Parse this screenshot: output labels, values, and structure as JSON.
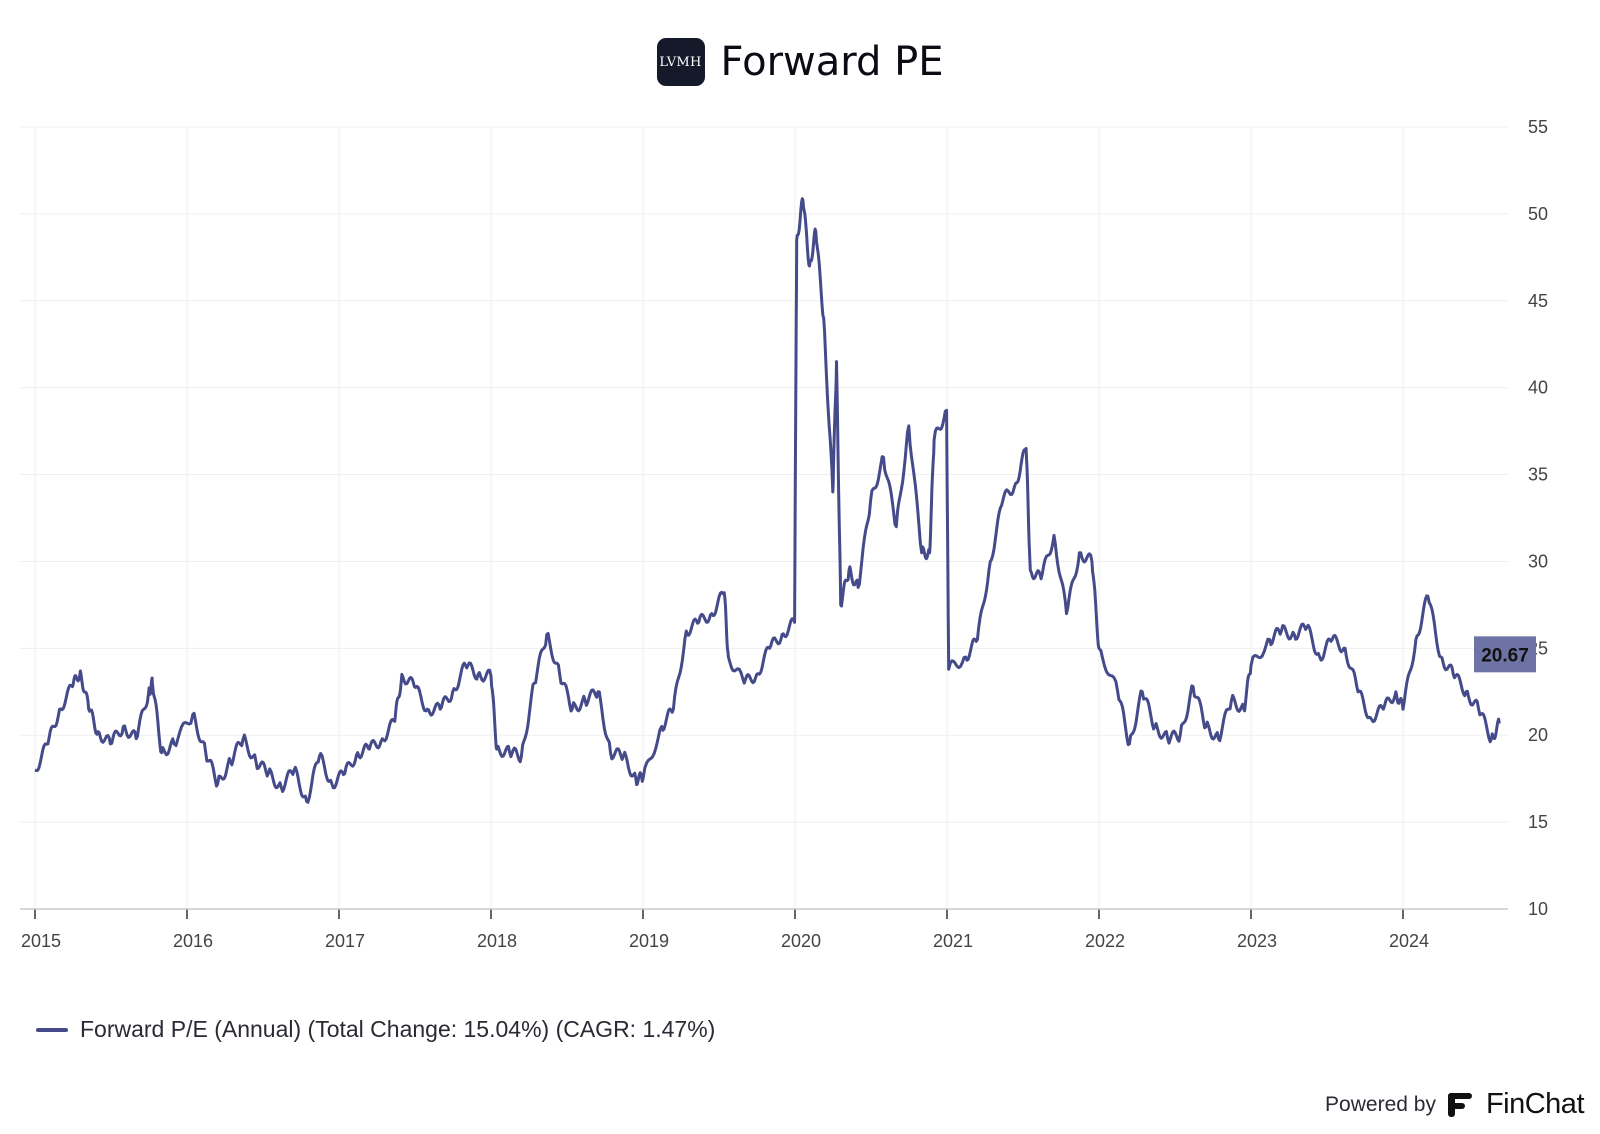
{
  "header": {
    "logo_text": "LVMH",
    "title": "Forward PE"
  },
  "legend": {
    "label": "Forward P/E (Annual) (Total Change: 15.04%) (CAGR: 1.47%)"
  },
  "footer": {
    "powered_label": "Powered by",
    "brand": "FinChat"
  },
  "colors": {
    "series": "#454b8a",
    "badge_bg": "#6e73a6",
    "grid": "#efefef",
    "axis": "#c8c8c8"
  },
  "chart_data": {
    "type": "line",
    "title": "Forward PE",
    "xlabel": "",
    "ylabel": "",
    "ylim": [
      10,
      55
    ],
    "yticks": [
      10,
      15,
      20,
      25,
      30,
      35,
      40,
      45,
      50,
      55
    ],
    "y_axis_side": "right",
    "x_ticks": [
      "2015",
      "2016",
      "2017",
      "2018",
      "2019",
      "2020",
      "2021",
      "2022",
      "2023",
      "2024"
    ],
    "grid": true,
    "legend_position": "bottom-left",
    "last_value_label": "20.67",
    "series": [
      {
        "name": "Forward P/E (Annual) (Total Change: 15.04%) (CAGR: 1.47%)",
        "points": [
          [
            "2015-01-01",
            18.0
          ],
          [
            "2015-02-01",
            19.5
          ],
          [
            "2015-03-01",
            21.5
          ],
          [
            "2015-04-01",
            22.8
          ],
          [
            "2015-04-20",
            23.7
          ],
          [
            "2015-05-10",
            21.5
          ],
          [
            "2015-06-01",
            20.2
          ],
          [
            "2015-07-01",
            19.5
          ],
          [
            "2015-08-01",
            20.5
          ],
          [
            "2015-09-01",
            19.8
          ],
          [
            "2015-10-01",
            22.5
          ],
          [
            "2015-10-10",
            23.0
          ],
          [
            "2015-11-01",
            19.0
          ],
          [
            "2015-12-01",
            19.5
          ],
          [
            "2016-01-15",
            21.2
          ],
          [
            "2016-02-15",
            19.0
          ],
          [
            "2016-03-15",
            17.2
          ],
          [
            "2016-04-15",
            18.5
          ],
          [
            "2016-05-15",
            19.8
          ],
          [
            "2016-06-15",
            18.5
          ],
          [
            "2016-07-15",
            17.8
          ],
          [
            "2016-08-15",
            17.0
          ],
          [
            "2016-09-15",
            18.0
          ],
          [
            "2016-10-15",
            16.2
          ],
          [
            "2016-11-15",
            18.8
          ],
          [
            "2016-12-15",
            17.2
          ],
          [
            "2017-01-15",
            17.8
          ],
          [
            "2017-02-15",
            19.0
          ],
          [
            "2017-03-15",
            19.2
          ],
          [
            "2017-04-15",
            19.8
          ],
          [
            "2017-05-15",
            20.8
          ],
          [
            "2017-06-01",
            23.5
          ],
          [
            "2017-07-01",
            22.8
          ],
          [
            "2017-08-01",
            21.5
          ],
          [
            "2017-09-01",
            21.5
          ],
          [
            "2017-10-01",
            22.5
          ],
          [
            "2017-11-01",
            24.0
          ],
          [
            "2017-12-01",
            23.5
          ],
          [
            "2018-01-01",
            23.4
          ],
          [
            "2018-01-15",
            19.2
          ],
          [
            "2018-02-15",
            19.0
          ],
          [
            "2018-03-15",
            18.8
          ],
          [
            "2018-04-15",
            23.0
          ],
          [
            "2018-05-15",
            25.8
          ],
          [
            "2018-06-15",
            23.5
          ],
          [
            "2018-07-15",
            21.5
          ],
          [
            "2018-08-15",
            22.0
          ],
          [
            "2018-09-15",
            22.5
          ],
          [
            "2018-10-15",
            19.0
          ],
          [
            "2018-11-15",
            18.8
          ],
          [
            "2018-12-15",
            17.5
          ],
          [
            "2019-01-01",
            17.5
          ],
          [
            "2019-02-15",
            20.5
          ],
          [
            "2019-03-15",
            21.5
          ],
          [
            "2019-04-15",
            26.0
          ],
          [
            "2019-05-15",
            26.5
          ],
          [
            "2019-06-15",
            27.0
          ],
          [
            "2019-07-15",
            28.2
          ],
          [
            "2019-07-25",
            24.5
          ],
          [
            "2019-09-01",
            23.0
          ],
          [
            "2019-10-01",
            23.5
          ],
          [
            "2019-11-01",
            25.0
          ],
          [
            "2019-12-01",
            25.8
          ],
          [
            "2019-12-31",
            26.5
          ],
          [
            "2020-01-05",
            48.5
          ],
          [
            "2020-01-20",
            50.8
          ],
          [
            "2020-02-05",
            47.0
          ],
          [
            "2020-02-20",
            49.0
          ],
          [
            "2020-03-10",
            44.0
          ],
          [
            "2020-04-01",
            34.0
          ],
          [
            "2020-04-10",
            41.5
          ],
          [
            "2020-04-20",
            27.5
          ],
          [
            "2020-05-10",
            29.5
          ],
          [
            "2020-06-01",
            28.5
          ],
          [
            "2020-07-01",
            33.5
          ],
          [
            "2020-08-01",
            36.0
          ],
          [
            "2020-09-01",
            32.0
          ],
          [
            "2020-10-01",
            37.8
          ],
          [
            "2020-11-01",
            30.5
          ],
          [
            "2020-11-20",
            30.5
          ],
          [
            "2020-12-01",
            37.0
          ],
          [
            "2020-12-31",
            38.7
          ],
          [
            "2021-01-05",
            23.8
          ],
          [
            "2021-02-15",
            24.5
          ],
          [
            "2021-03-15",
            25.5
          ],
          [
            "2021-04-15",
            30.0
          ],
          [
            "2021-05-15",
            33.5
          ],
          [
            "2021-06-15",
            34.5
          ],
          [
            "2021-07-10",
            36.5
          ],
          [
            "2021-07-20",
            29.5
          ],
          [
            "2021-08-15",
            29.0
          ],
          [
            "2021-09-15",
            31.5
          ],
          [
            "2021-10-15",
            27.0
          ],
          [
            "2021-11-15",
            30.5
          ],
          [
            "2021-12-15",
            30.0
          ],
          [
            "2022-01-01",
            25.0
          ],
          [
            "2022-02-15",
            22.5
          ],
          [
            "2022-03-15",
            19.5
          ],
          [
            "2022-04-15",
            22.5
          ],
          [
            "2022-05-15",
            20.5
          ],
          [
            "2022-06-15",
            19.8
          ],
          [
            "2022-07-15",
            20.0
          ],
          [
            "2022-08-15",
            22.8
          ],
          [
            "2022-09-15",
            20.5
          ],
          [
            "2022-10-15",
            19.8
          ],
          [
            "2022-11-15",
            22.0
          ],
          [
            "2022-12-15",
            21.5
          ],
          [
            "2023-01-01",
            24.0
          ],
          [
            "2023-02-15",
            25.5
          ],
          [
            "2023-03-15",
            26.0
          ],
          [
            "2023-04-15",
            25.8
          ],
          [
            "2023-05-15",
            26.2
          ],
          [
            "2023-06-15",
            24.5
          ],
          [
            "2023-07-15",
            25.5
          ],
          [
            "2023-08-15",
            25.0
          ],
          [
            "2023-09-15",
            22.5
          ],
          [
            "2023-10-15",
            21.0
          ],
          [
            "2023-11-15",
            21.5
          ],
          [
            "2023-12-15",
            22.5
          ],
          [
            "2024-01-01",
            21.5
          ],
          [
            "2024-02-01",
            25.5
          ],
          [
            "2024-03-01",
            28.0
          ],
          [
            "2024-04-01",
            24.5
          ],
          [
            "2024-05-01",
            23.5
          ],
          [
            "2024-06-01",
            22.5
          ],
          [
            "2024-07-01",
            21.5
          ],
          [
            "2024-08-01",
            19.8
          ],
          [
            "2024-08-20",
            20.67
          ]
        ]
      }
    ]
  }
}
